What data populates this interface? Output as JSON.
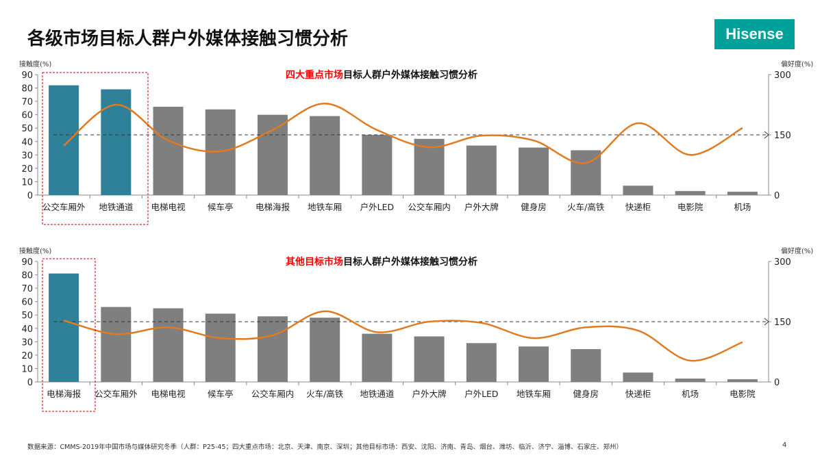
{
  "title": "各级市场目标人群户外媒体接触习惯分析",
  "logo": "Hisense",
  "footer": "数据来源：CMMS-2019年中国市场与媒体研究冬季（人群：P25-45；四大重点市场：北京、天津、南京、深圳；其他目标市场：西安、沈阳、济南、青岛、烟台、潍坊、临沂、济宁、淄博、石家庄、郑州）",
  "page_number": "4",
  "colors": {
    "highlight_bar": "#2e8199",
    "bar": "#7f7f7f",
    "line": "#e07b22",
    "title_red": "#ff0000",
    "box": "#c00000"
  },
  "chart_data": [
    {
      "type": "bar+line",
      "title_red": "四大重点市场",
      "title_rest": "目标人群户外媒体接触习惯分析",
      "ylabel": "接触度(%)",
      "y2label": "偏好度(%)",
      "ylim": [
        0,
        90
      ],
      "y2lim": [
        0,
        300
      ],
      "yticks": [
        0,
        10,
        20,
        30,
        40,
        50,
        60,
        70,
        80,
        90
      ],
      "y2ticks": [
        0,
        150,
        300
      ],
      "reference_line_y2": 150,
      "categories": [
        "公交车厢外",
        "地铁通道",
        "电梯电视",
        "候车亭",
        "电梯海报",
        "地铁车厢",
        "户外LED",
        "公交车厢内",
        "户外大牌",
        "健身房",
        "火车/高铁",
        "快递柜",
        "电影院",
        "机场"
      ],
      "bar_values": [
        82,
        79,
        66,
        64,
        60,
        59,
        45,
        42,
        37,
        35.5,
        33.5,
        7,
        3,
        2.5
      ],
      "line_values": [
        123,
        225,
        136,
        109,
        162,
        228,
        162,
        119,
        148,
        136,
        80,
        179,
        100,
        167
      ],
      "highlighted": [
        0,
        1
      ]
    },
    {
      "type": "bar+line",
      "title_red": "其他目标市场",
      "title_rest": "目标人群户外媒体接触习惯分析",
      "ylabel": "接触度(%)",
      "y2label": "偏好度(%)",
      "ylim": [
        0,
        90
      ],
      "y2lim": [
        0,
        300
      ],
      "yticks": [
        0,
        10,
        20,
        30,
        40,
        50,
        60,
        70,
        80,
        90
      ],
      "y2ticks": [
        0,
        150,
        300
      ],
      "reference_line_y2": 150,
      "categories": [
        "电梯海报",
        "公交车厢外",
        "电梯电视",
        "候车亭",
        "公交车厢内",
        "火车/高铁",
        "地铁通道",
        "户外大牌",
        "户外LED",
        "地铁车厢",
        "健身房",
        "快递柜",
        "机场",
        "电影院"
      ],
      "bar_values": [
        81,
        56,
        55,
        51,
        49,
        48,
        36,
        34,
        29,
        26.5,
        24.5,
        7,
        2.5,
        2
      ],
      "line_values": [
        153,
        119,
        136,
        109,
        116,
        176,
        124,
        150,
        147,
        109,
        136,
        128,
        53,
        99
      ],
      "highlighted": [
        0
      ]
    }
  ]
}
